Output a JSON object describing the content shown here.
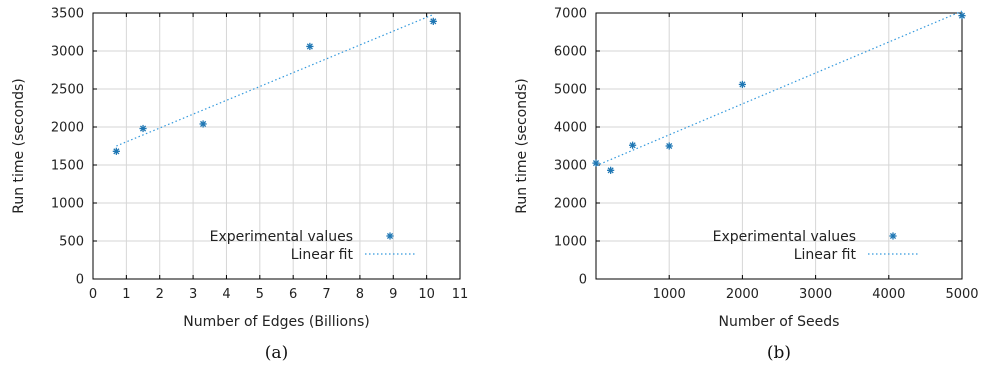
{
  "colors": {
    "marker": "#1f77b4",
    "fit": "#3399dd",
    "grid": "#d6d6d6"
  },
  "chart_data": [
    {
      "type": "scatter",
      "caption": "(a)",
      "xlabel": "Number of Edges (Billions)",
      "ylabel": "Run time (seconds)",
      "xlim": [
        0,
        11
      ],
      "ylim": [
        0,
        3500
      ],
      "xticks": [
        0,
        1,
        2,
        3,
        4,
        5,
        6,
        7,
        8,
        9,
        10,
        11
      ],
      "yticks": [
        0,
        500,
        1000,
        1500,
        2000,
        2500,
        3000,
        3500
      ],
      "grid": true,
      "legend_position": "bottom-right",
      "series": [
        {
          "name": "Experimental values",
          "kind": "points",
          "marker": "asterisk",
          "x": [
            0.7,
            1.5,
            3.3,
            6.5,
            10.2
          ],
          "y": [
            1680,
            1980,
            2040,
            3060,
            3390
          ]
        },
        {
          "name": "Linear fit",
          "kind": "line",
          "style": "dotted",
          "x": [
            0.7,
            10.2
          ],
          "y": [
            1750,
            3480
          ]
        }
      ]
    },
    {
      "type": "scatter",
      "caption": "(b)",
      "xlabel": "Number of Seeds",
      "ylabel": "Run time (seconds)",
      "xlim": [
        0,
        5000
      ],
      "ylim": [
        0,
        7000
      ],
      "xticks": [
        1000,
        2000,
        3000,
        4000,
        5000
      ],
      "yticks": [
        0,
        1000,
        2000,
        3000,
        4000,
        5000,
        6000,
        7000
      ],
      "grid": true,
      "legend_position": "bottom-right",
      "series": [
        {
          "name": "Experimental values",
          "kind": "points",
          "marker": "asterisk",
          "x": [
            0,
            200,
            500,
            1000,
            2000,
            5000
          ],
          "y": [
            3050,
            2860,
            3520,
            3500,
            5120,
            6930
          ]
        },
        {
          "name": "Linear fit",
          "kind": "line",
          "style": "dotted",
          "x": [
            0,
            5000
          ],
          "y": [
            2980,
            7050
          ]
        }
      ]
    }
  ]
}
